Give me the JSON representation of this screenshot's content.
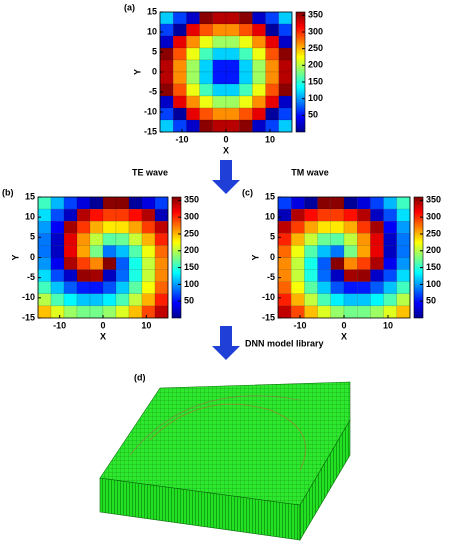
{
  "chart_data": [
    {
      "type": "heatmap",
      "panel": "(a)",
      "xlabel": "X",
      "ylabel": "Y",
      "colormap": "jet",
      "xlim": [
        -15,
        15
      ],
      "ylim": [
        -15,
        15
      ],
      "xticks": [
        -10,
        0,
        10
      ],
      "yticks": [
        -15,
        -10,
        -5,
        0,
        5,
        10,
        15
      ],
      "zlim": [
        0,
        360
      ],
      "colorbar_ticks": [
        50,
        100,
        150,
        200,
        250,
        300,
        350
      ],
      "x": [
        -13.5,
        -10.5,
        -7.5,
        -4.5,
        -1.5,
        1.5,
        4.5,
        7.5,
        10.5,
        13.5
      ],
      "y": [
        13.5,
        10.5,
        7.5,
        4.5,
        1.5,
        -1.5,
        -4.5,
        -7.5,
        -10.5,
        -13.5
      ],
      "values": [
        [
          117,
          68,
          26,
          356,
          340,
          340,
          356,
          26,
          68,
          117
        ],
        [
          68,
          11,
          323,
          286,
          265,
          265,
          286,
          323,
          11,
          68
        ],
        [
          26,
          323,
          265,
          219,
          191,
          191,
          219,
          265,
          323,
          26
        ],
        [
          356,
          286,
          219,
          159,
          119,
          119,
          159,
          219,
          286,
          356
        ],
        [
          340,
          265,
          191,
          119,
          53,
          53,
          119,
          191,
          265,
          340
        ],
        [
          340,
          265,
          191,
          119,
          53,
          53,
          119,
          191,
          265,
          340
        ],
        [
          356,
          286,
          219,
          159,
          119,
          119,
          159,
          219,
          286,
          356
        ],
        [
          26,
          323,
          265,
          219,
          191,
          191,
          219,
          265,
          323,
          26
        ],
        [
          68,
          11,
          323,
          286,
          265,
          265,
          286,
          323,
          11,
          68
        ],
        [
          117,
          68,
          26,
          356,
          340,
          340,
          356,
          26,
          68,
          117
        ]
      ]
    },
    {
      "type": "heatmap",
      "panel": "(b)",
      "xlabel": "X",
      "ylabel": "Y",
      "colormap": "jet",
      "xlim": [
        -15,
        15
      ],
      "ylim": [
        -15,
        15
      ],
      "xticks": [
        -10,
        0,
        10
      ],
      "yticks": [
        -15,
        -10,
        -5,
        0,
        5,
        10,
        15
      ],
      "zlim": [
        0,
        360
      ],
      "colorbar_ticks": [
        50,
        100,
        150,
        200,
        250,
        300,
        350
      ],
      "x": [
        -13.5,
        -10.5,
        -7.5,
        -4.5,
        -1.5,
        1.5,
        4.5,
        7.5,
        10.5,
        13.5
      ],
      "y": [
        13.5,
        10.5,
        7.5,
        4.5,
        1.5,
        -1.5,
        -4.5,
        -7.5,
        -10.5,
        -13.5
      ],
      "values": [
        [
          157,
          110,
          68,
          33,
          8,
          356,
          357,
          10,
          34,
          67
        ],
        [
          124,
          72,
          24,
          341,
          310,
          294,
          295,
          312,
          342,
          20
        ],
        [
          100,
          43,
          347,
          296,
          254,
          232,
          234,
          257,
          294,
          338
        ],
        [
          87,
          25,
          324,
          262,
          203,
          167,
          172,
          206,
          251,
          303
        ],
        [
          86,
          24,
          322,
          257,
          177,
          87,
          113,
          164,
          220,
          278
        ],
        [
          98,
          40,
          344,
          293,
          267,
          357,
          77,
          142,
          204,
          266
        ],
        [
          123,
          71,
          26,
          352,
          347,
          23,
          82,
          144,
          205,
          267
        ],
        [
          158,
          114,
          77,
          54,
          52,
          74,
          116,
          167,
          223,
          280
        ],
        [
          200,
          162,
          133,
          115,
          114,
          130,
          161,
          204,
          252,
          304
        ],
        [
          247,
          214,
          190,
          177,
          176,
          188,
          213,
          248,
          290,
          337
        ]
      ]
    },
    {
      "type": "heatmap",
      "panel": "(c)",
      "xlabel": "X",
      "ylabel": "Y",
      "colormap": "jet",
      "xlim": [
        -15,
        15
      ],
      "ylim": [
        -15,
        15
      ],
      "xticks": [
        -10,
        0,
        10
      ],
      "yticks": [
        -15,
        -10,
        -5,
        0,
        5,
        10,
        15
      ],
      "zlim": [
        0,
        360
      ],
      "colorbar_ticks": [
        50,
        100,
        150,
        200,
        250,
        300,
        350
      ],
      "x": [
        -13.5,
        -10.5,
        -7.5,
        -4.5,
        -1.5,
        1.5,
        4.5,
        7.5,
        10.5,
        13.5
      ],
      "y": [
        13.5,
        10.5,
        7.5,
        4.5,
        1.5,
        -1.5,
        -4.5,
        -7.5,
        -10.5,
        -13.5
      ],
      "values": [
        [
          67,
          34,
          10,
          357,
          356,
          8,
          33,
          68,
          110,
          157
        ],
        [
          20,
          342,
          312,
          295,
          294,
          310,
          341,
          24,
          72,
          124
        ],
        [
          338,
          294,
          257,
          234,
          232,
          254,
          296,
          347,
          43,
          100
        ],
        [
          303,
          251,
          206,
          172,
          167,
          203,
          262,
          324,
          25,
          87
        ],
        [
          278,
          220,
          164,
          113,
          87,
          177,
          257,
          322,
          24,
          86
        ],
        [
          266,
          204,
          142,
          77,
          357,
          267,
          293,
          344,
          40,
          98
        ],
        [
          267,
          205,
          144,
          82,
          23,
          347,
          352,
          26,
          71,
          123
        ],
        [
          280,
          223,
          167,
          116,
          74,
          52,
          54,
          77,
          114,
          158
        ],
        [
          304,
          252,
          204,
          161,
          130,
          114,
          115,
          133,
          162,
          200
        ],
        [
          337,
          290,
          248,
          213,
          188,
          176,
          177,
          190,
          214,
          247
        ]
      ]
    }
  ],
  "labels": {
    "te": "TE wave",
    "tm": "TM wave",
    "dnn": "DNN model library",
    "d": "(d)"
  }
}
